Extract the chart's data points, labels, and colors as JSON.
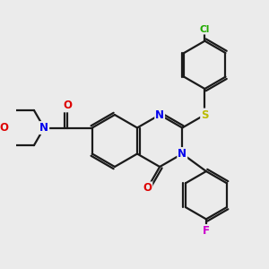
{
  "bg_color": "#ebebeb",
  "bond_color": "#1a1a1a",
  "bond_width": 1.6,
  "dbo": 0.055,
  "atom_colors": {
    "N": "#0000ee",
    "O": "#dd0000",
    "S": "#bbbb00",
    "Cl": "#22aa00",
    "F": "#cc00cc",
    "C": "#1a1a1a"
  },
  "fs": 8.5
}
